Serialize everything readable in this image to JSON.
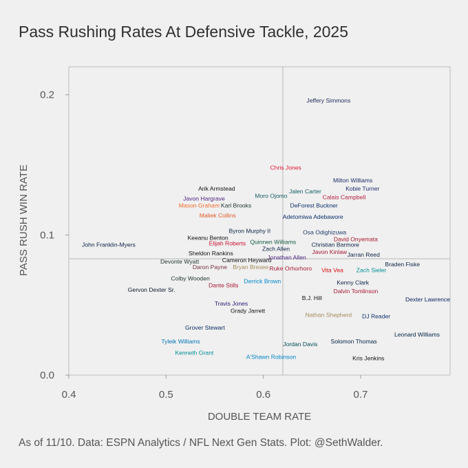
{
  "title": "Pass Rushing Rates At Defensive Tackle, 2025",
  "caption": "As of 11/10. Data: ESPN Analytics / NFL Next Gen Stats. Plot: @SethWalder.",
  "chart_data": {
    "type": "scatter",
    "title": "Pass Rushing Rates At Defensive Tackle, 2025",
    "xlabel": "DOUBLE TEAM RATE",
    "ylabel": "PASS RUSH WIN RATE",
    "xlim": [
      0.4,
      0.792
    ],
    "ylim": [
      0.0,
      0.22
    ],
    "x_ticks": [
      0.4,
      0.5,
      0.6,
      0.7
    ],
    "x_tick_labels": [
      "0.4",
      "0.5",
      "0.6",
      "0.7"
    ],
    "y_ticks": [
      0.0,
      0.1,
      0.2
    ],
    "y_tick_labels": [
      "0.0",
      "0.1",
      "0.2"
    ],
    "reference_lines": {
      "x": 0.62,
      "y": 0.083
    },
    "grid": false,
    "legend": "none",
    "points": [
      {
        "name": "Jeffery Simmons",
        "x": 0.667,
        "y": 0.196,
        "color": "#222c5c"
      },
      {
        "name": "Chris Jones",
        "x": 0.623,
        "y": 0.148,
        "color": "#e31837"
      },
      {
        "name": "Milton Williams",
        "x": 0.692,
        "y": 0.139,
        "color": "#1d2d6b"
      },
      {
        "name": "Kobie Turner",
        "x": 0.702,
        "y": 0.133,
        "color": "#1d2d6b"
      },
      {
        "name": "Arik Armstead",
        "x": 0.552,
        "y": 0.133,
        "color": "#111111"
      },
      {
        "name": "Jalen Carter",
        "x": 0.643,
        "y": 0.131,
        "color": "#125d63"
      },
      {
        "name": "Moro Ojomo",
        "x": 0.608,
        "y": 0.128,
        "color": "#125d63"
      },
      {
        "name": "Calais Campbell",
        "x": 0.683,
        "y": 0.127,
        "color": "#b51d3b"
      },
      {
        "name": "Javon Hargrave",
        "x": 0.539,
        "y": 0.126,
        "color": "#4f2683"
      },
      {
        "name": "Mason Graham",
        "x": 0.534,
        "y": 0.121,
        "color": "#f26b2b"
      },
      {
        "name": "Karl Brooks",
        "x": 0.572,
        "y": 0.121,
        "color": "#203731"
      },
      {
        "name": "DeForest Buckner",
        "x": 0.652,
        "y": 0.121,
        "color": "#0b2f6b"
      },
      {
        "name": "Maliek Collins",
        "x": 0.553,
        "y": 0.114,
        "color": "#e05a2a"
      },
      {
        "name": "Adetomiwa Adebawore",
        "x": 0.651,
        "y": 0.113,
        "color": "#0b2f6b"
      },
      {
        "name": "Byron Murphy II",
        "x": 0.586,
        "y": 0.103,
        "color": "#0b2345"
      },
      {
        "name": "Osa Odighizuwa",
        "x": 0.663,
        "y": 0.102,
        "color": "#1f3a68"
      },
      {
        "name": "Keeanu Benton",
        "x": 0.543,
        "y": 0.098,
        "color": "#111111"
      },
      {
        "name": "David Onyemata",
        "x": 0.695,
        "y": 0.097,
        "color": "#a6192e"
      },
      {
        "name": "Quinnen Williams",
        "x": 0.61,
        "y": 0.095,
        "color": "#125740"
      },
      {
        "name": "Elijah Roberts",
        "x": 0.563,
        "y": 0.094,
        "color": "#c8102e"
      },
      {
        "name": "Christian Barmore",
        "x": 0.674,
        "y": 0.093,
        "color": "#0b2345"
      },
      {
        "name": "John Franklin-Myers",
        "x": 0.441,
        "y": 0.093,
        "color": "#0b2345"
      },
      {
        "name": "Zach Allen",
        "x": 0.613,
        "y": 0.09,
        "color": "#0b2345"
      },
      {
        "name": "Javon Kinlaw",
        "x": 0.668,
        "y": 0.088,
        "color": "#a5192e"
      },
      {
        "name": "Sheldon Rankins",
        "x": 0.546,
        "y": 0.087,
        "color": "#111111"
      },
      {
        "name": "Jarran Reed",
        "x": 0.703,
        "y": 0.086,
        "color": "#0b2345"
      },
      {
        "name": "Jonathan Allen",
        "x": 0.624,
        "y": 0.084,
        "color": "#4f2683"
      },
      {
        "name": "Cameron Heyward",
        "x": 0.583,
        "y": 0.082,
        "color": "#111111"
      },
      {
        "name": "Devonte Wyatt",
        "x": 0.514,
        "y": 0.081,
        "color": "#203731"
      },
      {
        "name": "Braden Fiske",
        "x": 0.743,
        "y": 0.079,
        "color": "#0b2345"
      },
      {
        "name": "Daron Payne",
        "x": 0.545,
        "y": 0.077,
        "color": "#773141"
      },
      {
        "name": "Bryan Bresee",
        "x": 0.587,
        "y": 0.077,
        "color": "#a58a5c"
      },
      {
        "name": "Ruke Orhorhoro",
        "x": 0.628,
        "y": 0.076,
        "color": "#a71930"
      },
      {
        "name": "Vita Vea",
        "x": 0.671,
        "y": 0.075,
        "color": "#d50a0a"
      },
      {
        "name": "Zach Sieler",
        "x": 0.711,
        "y": 0.075,
        "color": "#008e97"
      },
      {
        "name": "Colby Wooden",
        "x": 0.525,
        "y": 0.069,
        "color": "#203731"
      },
      {
        "name": "Derrick Brown",
        "x": 0.599,
        "y": 0.067,
        "color": "#0085ca"
      },
      {
        "name": "Kenny Clark",
        "x": 0.692,
        "y": 0.066,
        "color": "#0b2345"
      },
      {
        "name": "Dante Stills",
        "x": 0.559,
        "y": 0.064,
        "color": "#a71930"
      },
      {
        "name": "Dalvin Tomlinson",
        "x": 0.695,
        "y": 0.06,
        "color": "#a71930"
      },
      {
        "name": "Gervon Dexter Sr.",
        "x": 0.485,
        "y": 0.061,
        "color": "#0b162a"
      },
      {
        "name": "B.J. Hill",
        "x": 0.65,
        "y": 0.055,
        "color": "#111111"
      },
      {
        "name": "Dexter Lawrence",
        "x": 0.769,
        "y": 0.054,
        "color": "#0b2265"
      },
      {
        "name": "Travis Jones",
        "x": 0.567,
        "y": 0.051,
        "color": "#241773"
      },
      {
        "name": "Grady Jarrett",
        "x": 0.584,
        "y": 0.046,
        "color": "#111111"
      },
      {
        "name": "Nathan Shepherd",
        "x": 0.667,
        "y": 0.043,
        "color": "#a58a5c"
      },
      {
        "name": "DJ Reader",
        "x": 0.716,
        "y": 0.042,
        "color": "#0b2f6b"
      },
      {
        "name": "Grover Stewart",
        "x": 0.54,
        "y": 0.034,
        "color": "#002c5f"
      },
      {
        "name": "Leonard Williams",
        "x": 0.758,
        "y": 0.029,
        "color": "#002244"
      },
      {
        "name": "Tyleik Williams",
        "x": 0.515,
        "y": 0.024,
        "color": "#0076b6"
      },
      {
        "name": "Solomon Thomas",
        "x": 0.693,
        "y": 0.024,
        "color": "#002244"
      },
      {
        "name": "Jordan Davis",
        "x": 0.638,
        "y": 0.022,
        "color": "#004c54"
      },
      {
        "name": "Kenneth Grant",
        "x": 0.529,
        "y": 0.016,
        "color": "#008e97"
      },
      {
        "name": "A'Shawn Robinson",
        "x": 0.608,
        "y": 0.013,
        "color": "#0085ca"
      },
      {
        "name": "Kris Jenkins",
        "x": 0.708,
        "y": 0.012,
        "color": "#111111"
      }
    ]
  }
}
